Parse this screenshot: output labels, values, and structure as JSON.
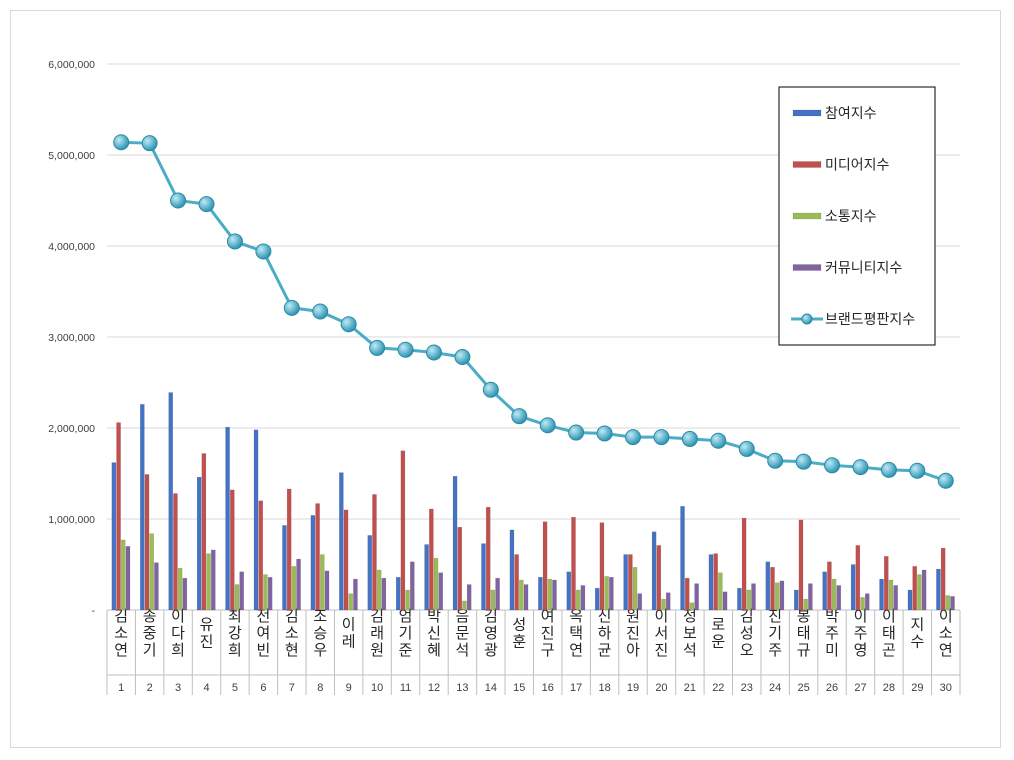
{
  "chart_data": {
    "type": "bar+line",
    "title": "",
    "xlabel": "",
    "ylabel": "",
    "ylim": [
      0,
      6000000
    ],
    "yticks": [
      "-",
      "1,000,000",
      "2,000,000",
      "3,000,000",
      "4,000,000",
      "5,000,000",
      "6,000,000"
    ],
    "grid": true,
    "legend_position": "top-right",
    "names": [
      "김소연",
      "송중기",
      "이다희",
      "유진",
      "최강희",
      "전여빈",
      "김소현",
      "조승우",
      "이레",
      "김래원",
      "엄기준",
      "박신혜",
      "음문석",
      "김영광",
      "성훈",
      "여진구",
      "옥택연",
      "신하균",
      "원진아",
      "이서진",
      "정보석",
      "로운",
      "김성오",
      "진기주",
      "봉태규",
      "박주미",
      "이주영",
      "이태곤",
      "지수",
      "이소연"
    ],
    "ranks": [
      "1",
      "2",
      "3",
      "4",
      "5",
      "6",
      "7",
      "8",
      "9",
      "10",
      "11",
      "12",
      "13",
      "14",
      "15",
      "16",
      "17",
      "18",
      "19",
      "20",
      "21",
      "22",
      "23",
      "24",
      "25",
      "26",
      "27",
      "28",
      "29",
      "30"
    ],
    "series": [
      {
        "name": "참여지수",
        "type": "bar",
        "color": "#4472c4",
        "values": [
          1620000,
          2260000,
          2390000,
          1460000,
          2010000,
          1980000,
          930000,
          1040000,
          1510000,
          820000,
          360000,
          720000,
          1470000,
          730000,
          880000,
          360000,
          420000,
          240000,
          610000,
          860000,
          1140000,
          610000,
          240000,
          530000,
          220000,
          420000,
          500000,
          340000,
          220000,
          450000
        ]
      },
      {
        "name": "미디어지수",
        "type": "bar",
        "color": "#c0504d",
        "values": [
          2060000,
          1490000,
          1280000,
          1720000,
          1320000,
          1200000,
          1330000,
          1170000,
          1100000,
          1270000,
          1750000,
          1110000,
          910000,
          1130000,
          610000,
          970000,
          1020000,
          960000,
          610000,
          710000,
          350000,
          620000,
          1010000,
          470000,
          990000,
          530000,
          710000,
          590000,
          480000,
          680000
        ]
      },
      {
        "name": "소통지수",
        "type": "bar",
        "color": "#9bbb59",
        "values": [
          770000,
          840000,
          460000,
          620000,
          280000,
          390000,
          480000,
          610000,
          180000,
          440000,
          220000,
          570000,
          100000,
          220000,
          330000,
          340000,
          220000,
          370000,
          470000,
          120000,
          80000,
          410000,
          220000,
          300000,
          120000,
          340000,
          140000,
          330000,
          390000,
          160000
        ]
      },
      {
        "name": "커뮤니티지수",
        "type": "bar",
        "color": "#8064a2",
        "values": [
          700000,
          520000,
          350000,
          660000,
          420000,
          360000,
          560000,
          430000,
          340000,
          350000,
          530000,
          410000,
          280000,
          350000,
          280000,
          330000,
          270000,
          360000,
          180000,
          190000,
          290000,
          200000,
          290000,
          320000,
          290000,
          270000,
          180000,
          270000,
          440000,
          150000
        ]
      },
      {
        "name": "브랜드평판지수",
        "type": "line",
        "color": "#4bacc6",
        "values": [
          5140000,
          5130000,
          4500000,
          4460000,
          4050000,
          3940000,
          3320000,
          3280000,
          3140000,
          2880000,
          2860000,
          2830000,
          2780000,
          2420000,
          2130000,
          2030000,
          1950000,
          1940000,
          1900000,
          1900000,
          1880000,
          1860000,
          1770000,
          1640000,
          1630000,
          1590000,
          1570000,
          1540000,
          1530000,
          1420000
        ]
      }
    ]
  }
}
